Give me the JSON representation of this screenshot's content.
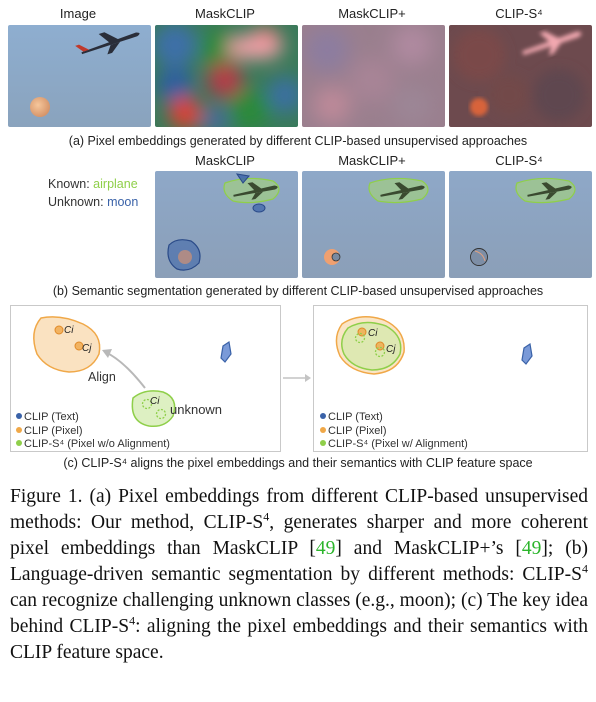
{
  "row_a": {
    "headers": [
      "Image",
      "MaskCLIP",
      "MaskCLIP+",
      "CLIP-S⁴"
    ],
    "caption": "(a) Pixel embeddings generated by different CLIP-based unsupervised approaches"
  },
  "row_b": {
    "headers": [
      "MaskCLIP",
      "MaskCLIP+",
      "CLIP-S⁴"
    ],
    "known_prefix": "Known: ",
    "known_class": "airplane",
    "unknown_prefix": "Unknown: ",
    "unknown_class": "moon",
    "caption": "(b) Semantic segmentation generated by different CLIP-based unsupervised approaches"
  },
  "row_c": {
    "align_label": "Align",
    "ci_label": "Ci",
    "cj_label": "Cj",
    "unknown_label": "unknown",
    "legend_left": [
      "CLIP (Text)",
      "CLIP (Pixel)",
      "CLIP-S⁴ (Pixel w/o Alignment)"
    ],
    "legend_right": [
      "CLIP (Text)",
      "CLIP (Pixel)",
      "CLIP-S⁴ (Pixel w/ Alignment)"
    ],
    "caption": "(c) CLIP-S⁴ aligns the pixel embeddings and their semantics with CLIP feature space"
  },
  "figure_caption": {
    "p1": "Figure 1.  (a) Pixel embeddings from different CLIP-based unsupervised methods: Our method, CLIP-S",
    "sup1": "4",
    "p2": ", generates sharper and more coherent pixel embeddings than MaskCLIP [",
    "ref1": "49",
    "p3": "] and MaskCLIP+’s [",
    "ref2": "49",
    "p4": "]; (b) Language-driven semantic segmentation by different methods:  CLIP-S",
    "sup2": "4",
    "p5": " can recognize challenging unknown classes (e.g., moon); (c) The key idea behind CLIP-S",
    "sup3": "4",
    "p6": ": aligning the pixel embeddings and their semantics with CLIP feature space."
  },
  "colors": {
    "sky": "#8ea8c6",
    "known_green": "#8fcf4a",
    "unknown_blue": "#3a62a8",
    "pixel_orange": "#f0a848",
    "link_green": "#2bb52b"
  }
}
